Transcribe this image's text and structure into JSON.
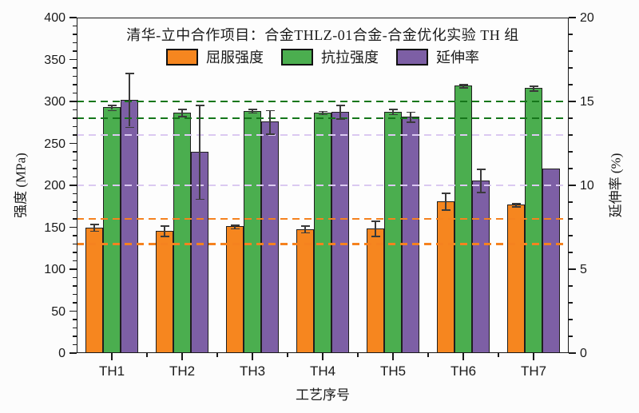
{
  "chart_data": {
    "type": "bar",
    "title": "清华-立中合作项目：合金THLZ-01合金-合金优化实验 TH 组",
    "xlabel": "工艺序号",
    "ylabel_left": "强度 (MPa)",
    "ylabel_right": "延伸率 (%)",
    "categories": [
      "TH1",
      "TH2",
      "TH3",
      "TH4",
      "TH5",
      "TH6",
      "TH7"
    ],
    "series": [
      {
        "name": "屈服强度",
        "axis": "left",
        "color": "#F6861F",
        "values": [
          150,
          146,
          151,
          148,
          149,
          181,
          177
        ],
        "errors": [
          4,
          6,
          2,
          4,
          9,
          10,
          2
        ]
      },
      {
        "name": "抗拉强度",
        "axis": "left",
        "color": "#4BAE4F",
        "values": [
          293,
          287,
          289,
          287,
          288,
          319,
          316
        ],
        "errors": [
          3,
          4,
          2,
          2,
          3,
          2,
          3
        ]
      },
      {
        "name": "延伸率",
        "axis": "right",
        "color": "#7D5FA5",
        "values": [
          15.1,
          12.0,
          13.8,
          14.4,
          14.1,
          10.3,
          11.0
        ],
        "errors": [
          1.6,
          2.8,
          0.7,
          0.4,
          0.3,
          0.7,
          0.1
        ]
      }
    ],
    "ylim_left": [
      0,
      400
    ],
    "ytick_major_left": 50,
    "ytick_minor_left": 10,
    "ylim_right": [
      0,
      20
    ],
    "ytick_major_right": 5,
    "ytick_minor_right": 1,
    "reference_lines": [
      {
        "value": 300,
        "axis": "left",
        "color": "#15761A"
      },
      {
        "value": 280,
        "axis": "left",
        "color": "#15761A"
      },
      {
        "value": 260,
        "axis": "left",
        "color": "#DBC9F1"
      },
      {
        "value": 200,
        "axis": "left",
        "color": "#DBC9F1"
      },
      {
        "value": 160,
        "axis": "left",
        "color": "#F5821F"
      },
      {
        "value": 130,
        "axis": "left",
        "color": "#F5821F"
      }
    ],
    "legend_position": "top-inside",
    "grid": false,
    "error_bar_color": "#3a3a3a"
  }
}
